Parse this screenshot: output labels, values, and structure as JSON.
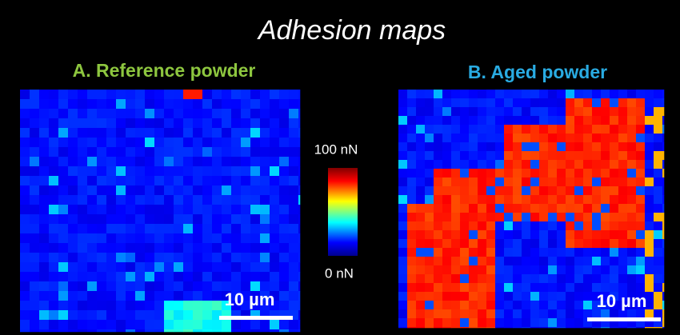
{
  "title": "Adhesion maps",
  "panels": [
    {
      "label": "A. Reference powder",
      "scale_bar": "10 µm"
    },
    {
      "label": "B. Aged powder",
      "scale_bar": "10 µm"
    }
  ],
  "colorbar": {
    "max_label": "100 nN",
    "min_label": "0 nN"
  }
}
